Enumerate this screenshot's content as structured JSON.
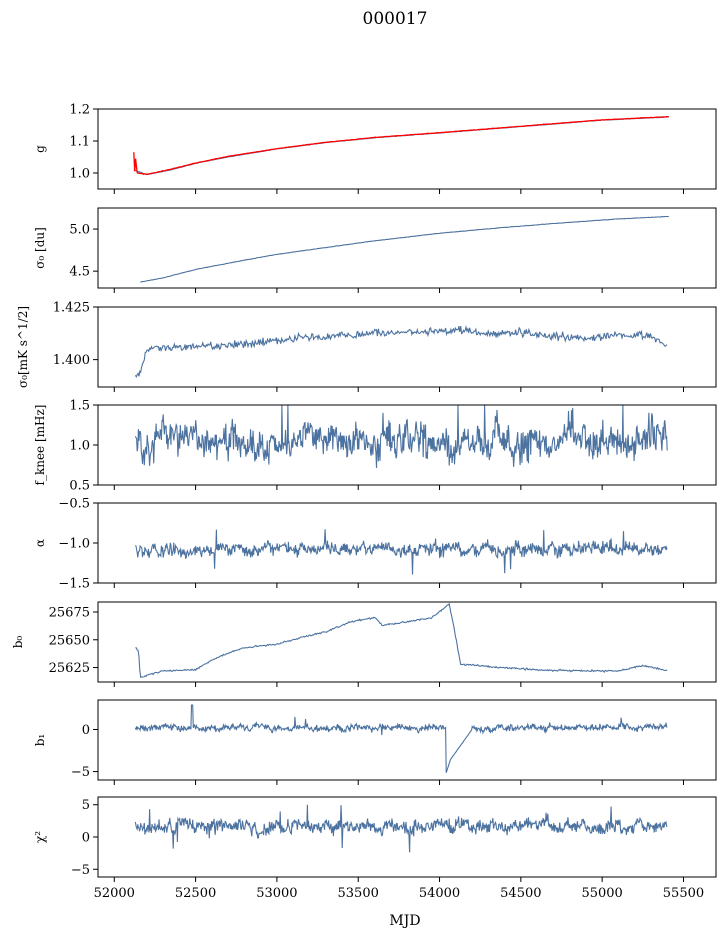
{
  "figure_title": "000017",
  "x_axis": {
    "label": "MJD",
    "range": [
      51900,
      55700
    ],
    "ticks": [
      52000,
      52500,
      53000,
      53500,
      54000,
      54500,
      55000,
      55500
    ],
    "tick_labels": [
      "52000",
      "52500",
      "53000",
      "53500",
      "54000",
      "54500",
      "55000",
      "55500"
    ]
  },
  "colors": {
    "series": "#4c72a0",
    "overlay": "#ff0000"
  },
  "chart_data": [
    {
      "type": "line",
      "ylabel": "g",
      "ylim": [
        0.95,
        1.2
      ],
      "yticks": [
        1.0,
        1.1,
        1.2
      ],
      "ytick_labels": [
        "1.0",
        "1.1",
        "1.2"
      ],
      "x_range": [
        52120,
        55410
      ],
      "series": [
        {
          "x": [
            52120,
            52200,
            52350,
            52500,
            52700,
            53000,
            53300,
            53600,
            54000,
            54500,
            55000,
            55410
          ],
          "values": [
            1.01,
            0.995,
            1.01,
            1.03,
            1.05,
            1.075,
            1.095,
            1.11,
            1.125,
            1.145,
            1.165,
            1.175
          ]
        },
        {
          "x": [
            52120,
            52125,
            52130,
            52140,
            52200,
            52350,
            52500,
            52700,
            53000,
            53300,
            53600,
            54000,
            54500,
            55000,
            55410
          ],
          "values": [
            1.065,
            1.0,
            1.05,
            1.0,
            0.996,
            1.012,
            1.031,
            1.052,
            1.076,
            1.096,
            1.111,
            1.126,
            1.146,
            1.166,
            1.176
          ]
        }
      ]
    },
    {
      "type": "line",
      "ylabel": "σ₀ [du]",
      "ylim": [
        4.3,
        5.25
      ],
      "yticks": [
        4.5,
        5.0
      ],
      "ytick_labels": [
        "4.5",
        "5.0"
      ],
      "x_range": [
        52160,
        55410
      ],
      "series": [
        {
          "x": [
            52160,
            52300,
            52500,
            52800,
            53000,
            53300,
            53600,
            54000,
            54400,
            54800,
            55100,
            55410
          ],
          "values": [
            4.37,
            4.42,
            4.52,
            4.63,
            4.7,
            4.78,
            4.86,
            4.95,
            5.02,
            5.08,
            5.12,
            5.15
          ]
        }
      ]
    },
    {
      "type": "line",
      "ylabel": "σ₀[mK s^1/2]",
      "ylim": [
        1.387,
        1.425
      ],
      "yticks": [
        1.4,
        1.425
      ],
      "ytick_labels": [
        "1.400",
        "1.425"
      ],
      "x_range": [
        52130,
        55400
      ],
      "series": [
        {
          "x": [
            52130,
            52150,
            52200,
            52300,
            52500,
            52700,
            52900,
            53100,
            53300,
            53500,
            53700,
            53900,
            54100,
            54300,
            54500,
            54700,
            54900,
            55100,
            55300,
            55400
          ],
          "values": [
            1.393,
            1.392,
            1.404,
            1.406,
            1.406,
            1.407,
            1.408,
            1.41,
            1.411,
            1.412,
            1.413,
            1.413,
            1.414,
            1.412,
            1.413,
            1.411,
            1.41,
            1.412,
            1.411,
            1.406
          ]
        }
      ]
    },
    {
      "type": "line",
      "ylabel": "f_knee [mHz]",
      "ylim": [
        0.5,
        1.5
      ],
      "yticks": [
        0.5,
        1.0,
        1.5
      ],
      "ytick_labels": [
        "0.5",
        "1.0",
        "1.5"
      ],
      "x_range": [
        52130,
        55400
      ],
      "series": [
        {
          "values_mean": 1.05,
          "values_spread": 0.18
        }
      ]
    },
    {
      "type": "line",
      "ylabel": "α",
      "ylim": [
        -1.5,
        -0.5
      ],
      "yticks": [
        -1.5,
        -1.0,
        -0.5
      ],
      "ytick_labels": [
        "−1.5",
        "−1.0",
        "−0.5"
      ],
      "x_range": [
        52130,
        55400
      ],
      "series": [
        {
          "values_mean": -1.08,
          "values_spread": 0.07
        }
      ]
    },
    {
      "type": "line",
      "ylabel": "b₀",
      "ylim": [
        25612,
        25684
      ],
      "yticks": [
        25625,
        25650,
        25675
      ],
      "ytick_labels": [
        "25625",
        "25650",
        "25675"
      ],
      "x_range": [
        52130,
        55400
      ],
      "series": [
        {
          "x": [
            52130,
            52150,
            52160,
            52300,
            52500,
            52600,
            52700,
            52800,
            53000,
            53200,
            53300,
            53450,
            53600,
            53650,
            53800,
            53950,
            54060,
            54090,
            54130,
            54300,
            54600,
            54900,
            55100,
            55250,
            55400
          ],
          "values": [
            25643,
            25640,
            25616,
            25622,
            25623,
            25632,
            25638,
            25643,
            25646,
            25654,
            25657,
            25666,
            25670,
            25663,
            25666,
            25670,
            25682,
            25660,
            25628,
            25626,
            25623,
            25622,
            25622,
            25627,
            25622
          ]
        }
      ]
    },
    {
      "type": "line",
      "ylabel": "b₁",
      "ylim": [
        -6,
        3.5
      ],
      "yticks": [
        -5,
        0
      ],
      "ytick_labels": [
        "−5",
        "0"
      ],
      "x_range": [
        52130,
        55400
      ],
      "series": [
        {
          "values_mean": 0.2,
          "values_spread": 0.3
        }
      ]
    },
    {
      "type": "line",
      "ylabel": "χ²",
      "ylim": [
        -6.2,
        6.2
      ],
      "yticks": [
        -5,
        0,
        5
      ],
      "ytick_labels": [
        "−5",
        "0",
        "5"
      ],
      "x_range": [
        52130,
        55400
      ],
      "series": [
        {
          "values_mean": 1.7,
          "values_spread": 0.9
        }
      ]
    }
  ]
}
